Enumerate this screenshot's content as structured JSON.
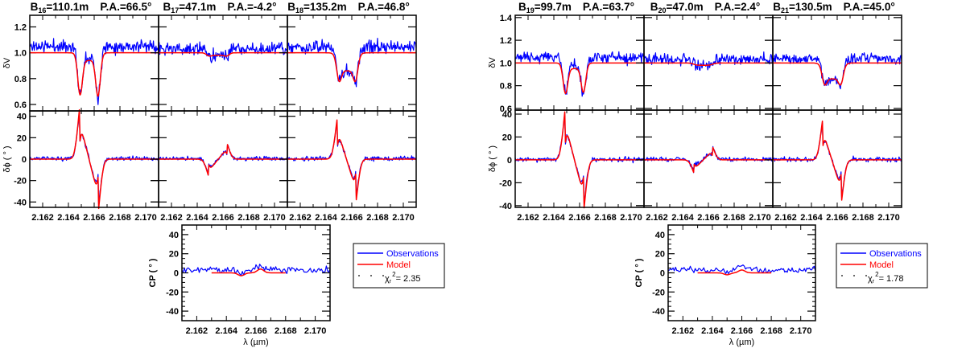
{
  "chart_data": [
    {
      "type": "line",
      "figure": "left",
      "xlabel": "λ (µm)",
      "xlim": [
        2.161,
        2.171
      ],
      "xticks": [
        "2.162",
        "2.164",
        "2.166",
        "2.168",
        "2.170"
      ],
      "colors": {
        "observations": "#0000ff",
        "model": "#ff0000"
      },
      "vis_axis": {
        "ylabel": "δV",
        "ylim": [
          0.55,
          1.29
        ],
        "ticks": [
          "0.6",
          "0.8",
          "1.0",
          "1.2"
        ]
      },
      "phase_axis": {
        "ylabel": "δϕ ( ° )",
        "ylim": [
          -45,
          45
        ],
        "ticks": [
          "-40",
          "-20",
          "0",
          "20",
          "40"
        ]
      },
      "cp_axis": {
        "ylabel": "CP ( ° )",
        "ylim": [
          -50,
          50
        ],
        "ticks": [
          "-40",
          "-20",
          "0",
          "20",
          "40"
        ]
      },
      "baselines": [
        {
          "b": "B",
          "sub": "16",
          "len": "=110.1m",
          "pa": "P.A.=66.5°",
          "vis": {
            "model_dips": [
              [
                2.1649,
                0.66
              ],
              [
                2.1663,
                0.65
              ]
            ],
            "model_mid": 0.94,
            "obs_continuum": 1.05
          },
          "phase": {
            "model_extrema": [
              [
                2.1649,
                34
              ],
              [
                2.1663,
                -34
              ]
            ]
          }
        },
        {
          "b": "B",
          "sub": "17",
          "len": "=47.1m",
          "pa": "P.A.=-4.2°",
          "vis": {
            "model_dips": [
              [
                2.1649,
                0.97
              ],
              [
                2.1663,
                0.97
              ]
            ],
            "model_mid": 0.98,
            "obs_continuum": 1.03
          },
          "phase": {
            "model_extrema": [
              [
                2.1649,
                -11
              ],
              [
                2.1663,
                10
              ]
            ]
          }
        },
        {
          "b": "B",
          "sub": "18",
          "len": "=135.2m",
          "pa": "P.A.=46.8°",
          "vis": {
            "model_dips": [
              [
                2.165,
                0.75
              ],
              [
                2.1663,
                0.75
              ]
            ],
            "model_mid": 0.86,
            "obs_continuum": 1.04
          },
          "phase": {
            "model_extrema": [
              [
                2.1649,
                27
              ],
              [
                2.1663,
                -28
              ]
            ]
          }
        }
      ],
      "cp": {
        "model_range": [
          2.163,
          2.168
        ],
        "model_extrema": [
          [
            2.165,
            -3
          ],
          [
            2.1663,
            4
          ]
        ],
        "obs_level": 3
      },
      "legend": {
        "observations": "Observations",
        "model": "Model",
        "chi_symbol": "χ",
        "chi_sub": "r",
        "chi_sup": "2",
        "chi_value": "= 2.35"
      }
    },
    {
      "type": "line",
      "figure": "right",
      "xlabel": "λ (µm)",
      "xlim": [
        2.161,
        2.171
      ],
      "xticks": [
        "2.162",
        "2.164",
        "2.166",
        "2.168",
        "2.170"
      ],
      "colors": {
        "observations": "#0000ff",
        "model": "#ff0000"
      },
      "vis_axis": {
        "ylabel": "δV",
        "ylim": [
          0.585,
          1.42
        ],
        "ticks": [
          "0.6",
          "0.8",
          "1.0",
          "1.2",
          "1.4"
        ]
      },
      "phase_axis": {
        "ylabel": "δϕ ( ° )",
        "ylim": [
          -41.5,
          43.5
        ],
        "ticks": [
          "-40",
          "-20",
          "0",
          "20",
          "40"
        ]
      },
      "cp_axis": {
        "ylabel": "CP ( ° )",
        "ylim": [
          -50,
          50
        ],
        "ticks": [
          "-40",
          "-20",
          "0",
          "20",
          "40"
        ]
      },
      "baselines": [
        {
          "b": "B",
          "sub": "19",
          "len": "=99.7m",
          "pa": "P.A.=63.7°",
          "vis": {
            "model_dips": [
              [
                2.1649,
                0.72
              ],
              [
                2.1663,
                0.73
              ]
            ],
            "model_mid": 0.95,
            "obs_continuum": 1.05
          },
          "phase": {
            "model_extrema": [
              [
                2.1649,
                31
              ],
              [
                2.1663,
                -31
              ]
            ]
          }
        },
        {
          "b": "B",
          "sub": "20",
          "len": "=47.0m",
          "pa": "P.A.=2.4°",
          "vis": {
            "model_dips": [
              [
                2.165,
                0.98
              ],
              [
                2.1662,
                0.98
              ]
            ],
            "model_mid": 0.98,
            "obs_continuum": 1.03
          },
          "phase": {
            "model_extrema": [
              [
                2.1649,
                -8
              ],
              [
                2.1663,
                8
              ]
            ]
          }
        },
        {
          "b": "B",
          "sub": "21",
          "len": "=130.5m",
          "pa": "P.A.=45.0°",
          "vis": {
            "model_dips": [
              [
                2.165,
                0.78
              ],
              [
                2.1663,
                0.78
              ]
            ],
            "model_mid": 0.86,
            "obs_continuum": 1.04
          },
          "phase": {
            "model_extrema": [
              [
                2.1649,
                25
              ],
              [
                2.1663,
                -26
              ]
            ]
          }
        }
      ],
      "cp": {
        "model_range": [
          2.163,
          2.168
        ],
        "model_extrema": [
          [
            2.165,
            -2
          ],
          [
            2.166,
            3
          ]
        ],
        "obs_level": 3
      },
      "legend": {
        "observations": "Observations",
        "model": "Model",
        "chi_symbol": "χ",
        "chi_sub": "r",
        "chi_sup": "2",
        "chi_value": "= 1.78"
      }
    }
  ]
}
